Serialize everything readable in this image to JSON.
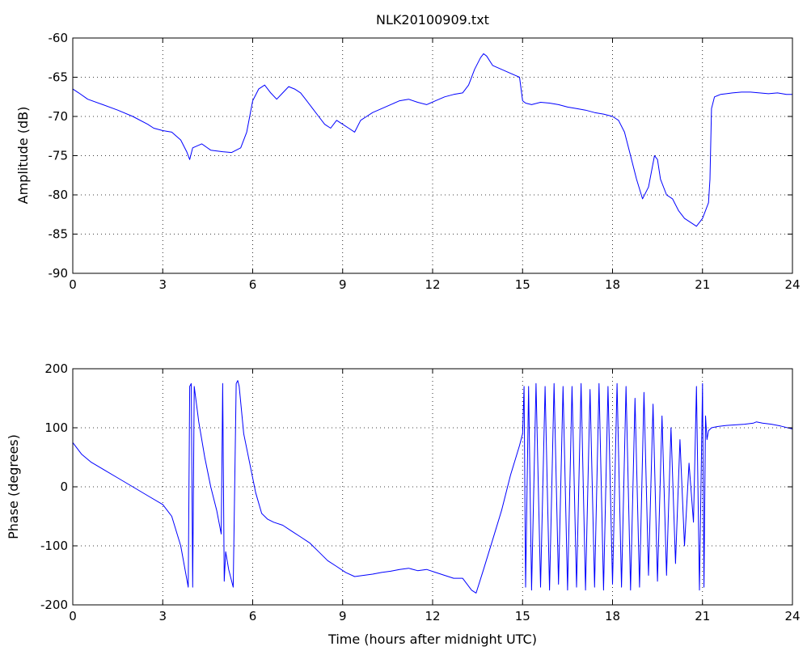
{
  "chart_data": [
    {
      "type": "line",
      "title": "NLK20100909.txt",
      "xlabel": "",
      "ylabel": "Amplitude (dB)",
      "xlim": [
        0,
        24
      ],
      "ylim": [
        -90,
        -60
      ],
      "xticks": [
        "0",
        "3",
        "6",
        "9",
        "12",
        "15",
        "18",
        "21",
        "24"
      ],
      "yticks": [
        "-90",
        "-85",
        "-80",
        "-75",
        "-70",
        "-65",
        "-60"
      ],
      "grid": true,
      "color": "#0000ff",
      "series": [
        {
          "x": [
            0,
            0.2,
            0.5,
            1,
            1.5,
            2,
            2.5,
            2.7,
            3,
            3.3,
            3.6,
            3.8,
            3.9,
            4.0,
            4.3,
            4.6,
            5.0,
            5.3,
            5.6,
            5.8,
            6.0,
            6.2,
            6.4,
            6.6,
            6.8,
            7.0,
            7.2,
            7.4,
            7.6,
            7.8,
            8.0,
            8.2,
            8.4,
            8.6,
            8.8,
            9.0,
            9.2,
            9.4,
            9.6,
            9.8,
            10.0,
            10.3,
            10.6,
            10.9,
            11.2,
            11.5,
            11.8,
            12.1,
            12.4,
            12.7,
            13.0,
            13.2,
            13.4,
            13.6,
            13.7,
            13.8,
            14.0,
            14.3,
            14.6,
            14.9,
            15.0,
            15.1,
            15.3,
            15.6,
            15.9,
            16.2,
            16.5,
            16.8,
            17.1,
            17.4,
            17.7,
            18.0,
            18.2,
            18.4,
            18.6,
            18.8,
            19.0,
            19.2,
            19.4,
            19.5,
            19.6,
            19.8,
            20.0,
            20.2,
            20.4,
            20.6,
            20.8,
            21.0,
            21.1,
            21.2,
            21.25,
            21.3,
            21.4,
            21.6,
            21.8,
            22.0,
            22.3,
            22.6,
            22.9,
            23.2,
            23.5,
            23.8,
            24.0
          ],
          "y": [
            -66.5,
            -67,
            -67.8,
            -68.5,
            -69.2,
            -70,
            -71,
            -71.5,
            -71.8,
            -72,
            -73,
            -74.5,
            -75.5,
            -74,
            -73.5,
            -74.3,
            -74.5,
            -74.6,
            -74,
            -72,
            -68,
            -66.5,
            -66,
            -67,
            -67.8,
            -67,
            -66.2,
            -66.5,
            -67,
            -68,
            -69,
            -70,
            -71,
            -71.5,
            -70.5,
            -71,
            -71.5,
            -72,
            -70.5,
            -70,
            -69.5,
            -69,
            -68.5,
            -68,
            -67.8,
            -68.2,
            -68.5,
            -68,
            -67.5,
            -67.2,
            -67,
            -66,
            -64,
            -62.5,
            -62,
            -62.3,
            -63.5,
            -64,
            -64.5,
            -65,
            -68,
            -68.3,
            -68.5,
            -68.2,
            -68.3,
            -68.5,
            -68.8,
            -69,
            -69.2,
            -69.5,
            -69.7,
            -70,
            -70.5,
            -72,
            -75,
            -78,
            -80.5,
            -79,
            -75,
            -75.5,
            -78,
            -80,
            -80.5,
            -82,
            -83,
            -83.5,
            -84,
            -83,
            -82,
            -81,
            -78,
            -69,
            -67.5,
            -67.2,
            -67.1,
            -67,
            -66.9,
            -66.9,
            -67,
            -67.1,
            -67,
            -67.2,
            -67.2
          ]
        }
      ]
    },
    {
      "type": "line",
      "title": "",
      "xlabel": "Time (hours after midnight UTC)",
      "ylabel": "Phase (degrees)",
      "xlim": [
        0,
        24
      ],
      "ylim": [
        -200,
        200
      ],
      "xticks": [
        "0",
        "3",
        "6",
        "9",
        "12",
        "15",
        "18",
        "21",
        "24"
      ],
      "yticks": [
        "-200",
        "-100",
        "0",
        "100",
        "200"
      ],
      "grid": true,
      "color": "#0000ff",
      "series": [
        {
          "x": [
            0,
            0.3,
            0.6,
            1,
            1.5,
            2,
            2.5,
            3,
            3.3,
            3.6,
            3.85,
            3.9,
            3.95,
            4.0,
            4.05,
            4.2,
            4.4,
            4.6,
            4.8,
            4.95,
            5.0,
            5.05,
            5.1,
            5.2,
            5.35,
            5.45,
            5.5,
            5.55,
            5.7,
            5.9,
            6.1,
            6.3,
            6.5,
            6.7,
            7.0,
            7.3,
            7.6,
            7.9,
            8.2,
            8.5,
            8.8,
            9.1,
            9.4,
            9.7,
            10.0,
            10.3,
            10.6,
            10.9,
            11.2,
            11.5,
            11.8,
            12.1,
            12.4,
            12.7,
            13.0,
            13.3,
            13.45,
            13.7,
            14.0,
            14.3,
            14.6,
            14.9,
            15.0,
            15.05,
            15.1,
            15.2,
            15.3,
            15.45,
            15.6,
            15.75,
            15.9,
            16.05,
            16.2,
            16.35,
            16.5,
            16.65,
            16.8,
            16.95,
            17.1,
            17.25,
            17.4,
            17.55,
            17.7,
            17.85,
            18.0,
            18.15,
            18.3,
            18.45,
            18.6,
            18.75,
            18.9,
            19.05,
            19.2,
            19.35,
            19.5,
            19.65,
            19.8,
            19.95,
            20.1,
            20.25,
            20.4,
            20.55,
            20.7,
            20.8,
            20.9,
            21.0,
            21.05,
            21.1,
            21.15,
            21.2,
            21.3,
            21.5,
            21.8,
            22.1,
            22.4,
            22.7,
            22.8,
            23.0,
            23.3,
            23.6,
            24.0
          ],
          "y": [
            75,
            55,
            42,
            30,
            15,
            0,
            -15,
            -30,
            -50,
            -100,
            -170,
            170,
            175,
            -170,
            170,
            110,
            50,
            0,
            -40,
            -80,
            175,
            -160,
            -110,
            -140,
            -170,
            175,
            180,
            170,
            90,
            40,
            -10,
            -45,
            -55,
            -60,
            -65,
            -75,
            -85,
            -95,
            -110,
            -125,
            -135,
            -145,
            -152,
            -150,
            -148,
            -145,
            -143,
            -140,
            -138,
            -142,
            -140,
            -145,
            -150,
            -155,
            -155,
            -175,
            -180,
            -140,
            -90,
            -40,
            20,
            70,
            90,
            170,
            -170,
            170,
            -175,
            175,
            -170,
            170,
            -175,
            175,
            -165,
            170,
            -175,
            170,
            -170,
            175,
            -175,
            165,
            -170,
            175,
            -175,
            170,
            -165,
            175,
            -170,
            170,
            -175,
            150,
            -170,
            160,
            -150,
            140,
            -160,
            120,
            -150,
            100,
            -130,
            80,
            -100,
            40,
            -60,
            170,
            -175,
            175,
            -170,
            120,
            80,
            95,
            100,
            102,
            104,
            105,
            106,
            108,
            110,
            108,
            106,
            103,
            98
          ]
        }
      ]
    }
  ]
}
